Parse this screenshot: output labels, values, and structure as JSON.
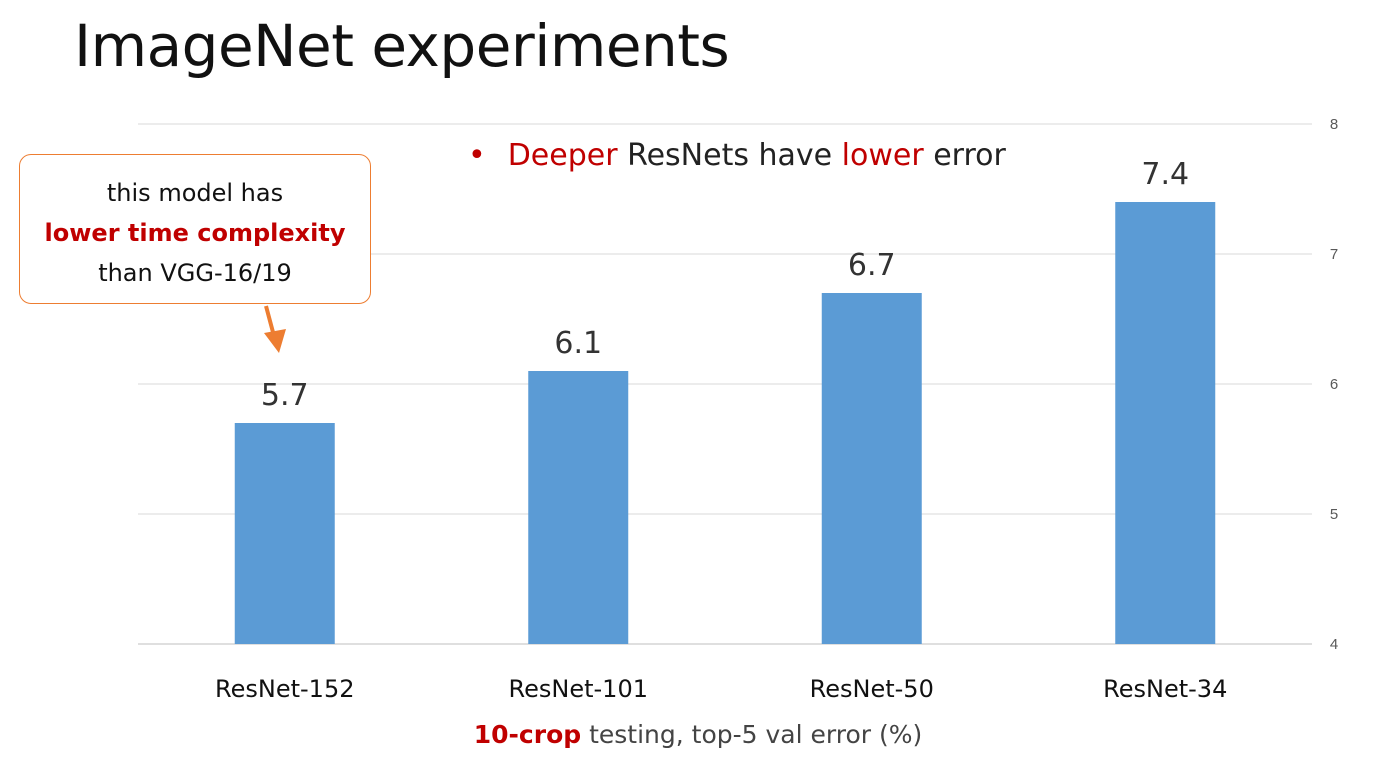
{
  "slide": {
    "title": "ImageNet experiments",
    "bullet": {
      "marker": "•",
      "word1": "Deeper",
      "text1": " ResNets have ",
      "word2": "lower",
      "text2": " error"
    },
    "callout": {
      "line1": "this model has",
      "line2": "lower time complexity",
      "line3": "than VGG-16/19"
    },
    "caption": {
      "emphasis": "10-crop",
      "rest": " testing, top-5 val error (%)"
    }
  },
  "colors": {
    "bar": "#5b9bd5",
    "accent_red": "#c00000",
    "arrow": "#ed7d31",
    "grid": "#d9d9d9"
  },
  "chart_data": {
    "type": "bar",
    "categories": [
      "ResNet-152",
      "ResNet-101",
      "ResNet-50",
      "ResNet-34"
    ],
    "values": [
      5.7,
      6.1,
      6.7,
      7.4
    ],
    "data_labels": [
      "5.7",
      "6.1",
      "6.7",
      "7.4"
    ],
    "ylim": [
      4,
      8
    ],
    "yticks": [
      4,
      5,
      6,
      7,
      8
    ],
    "ytick_labels": [
      "4",
      "5",
      "6",
      "7",
      "8"
    ],
    "y_axis_side": "right",
    "grid": true
  }
}
